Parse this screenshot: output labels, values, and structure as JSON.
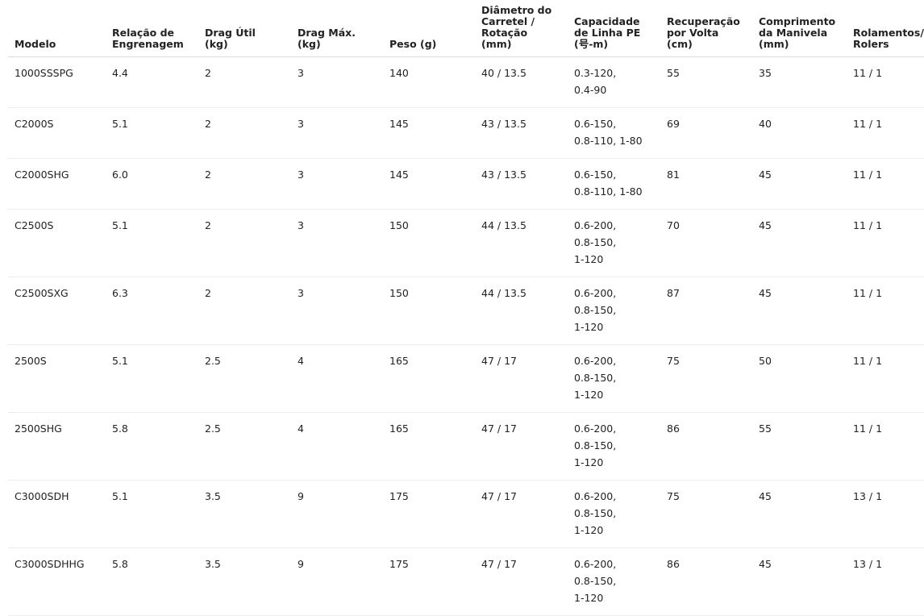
{
  "table": {
    "columns": [
      "Modelo",
      "Relação de\nEngrenagem",
      "Drag Útil\n(kg)",
      "Drag Máx.\n(kg)",
      "Peso (g)",
      "Diâmetro do\nCarretel /\nRotação\n(mm)",
      "Capacidade\nde Linha PE\n(号-m)",
      "Recuperação\npor Volta\n(cm)",
      "Comprimento\nda Manivela\n(mm)",
      "Rolamentos/\nRolers"
    ],
    "rows": [
      [
        "1000SSSPG",
        "4.4",
        "2",
        "3",
        "140",
        "40 / 13.5",
        "0.3-120,\n0.4-90",
        "55",
        "35",
        "11 / 1"
      ],
      [
        "C2000S",
        "5.1",
        "2",
        "3",
        "145",
        "43 / 13.5",
        "0.6-150,\n0.8-110, 1-80",
        "69",
        "40",
        "11 / 1"
      ],
      [
        "C2000SHG",
        "6.0",
        "2",
        "3",
        "145",
        "43 / 13.5",
        "0.6-150,\n0.8-110, 1-80",
        "81",
        "45",
        "11 / 1"
      ],
      [
        "C2500S",
        "5.1",
        "2",
        "3",
        "150",
        "44 / 13.5",
        "0.6-200,\n0.8-150,\n1-120",
        "70",
        "45",
        "11 / 1"
      ],
      [
        "C2500SXG",
        "6.3",
        "2",
        "3",
        "150",
        "44 / 13.5",
        "0.6-200,\n0.8-150,\n1-120",
        "87",
        "45",
        "11 / 1"
      ],
      [
        "2500S",
        "5.1",
        "2.5",
        "4",
        "165",
        "47 / 17",
        "0.6-200,\n0.8-150,\n1-120",
        "75",
        "50",
        "11 / 1"
      ],
      [
        "2500SHG",
        "5.8",
        "2.5",
        "4",
        "165",
        "47 / 17",
        "0.6-200,\n0.8-150,\n1-120",
        "86",
        "55",
        "11 / 1"
      ],
      [
        "C3000SDH",
        "5.1",
        "3.5",
        "9",
        "175",
        "47 / 17",
        "0.6-200,\n0.8-150,\n1-120",
        "75",
        "45",
        "13 / 1"
      ],
      [
        "C3000SDHHG",
        "5.8",
        "3.5",
        "9",
        "175",
        "47 / 17",
        "0.6-200,\n0.8-150,\n1-120",
        "86",
        "45",
        "13 / 1"
      ]
    ]
  }
}
